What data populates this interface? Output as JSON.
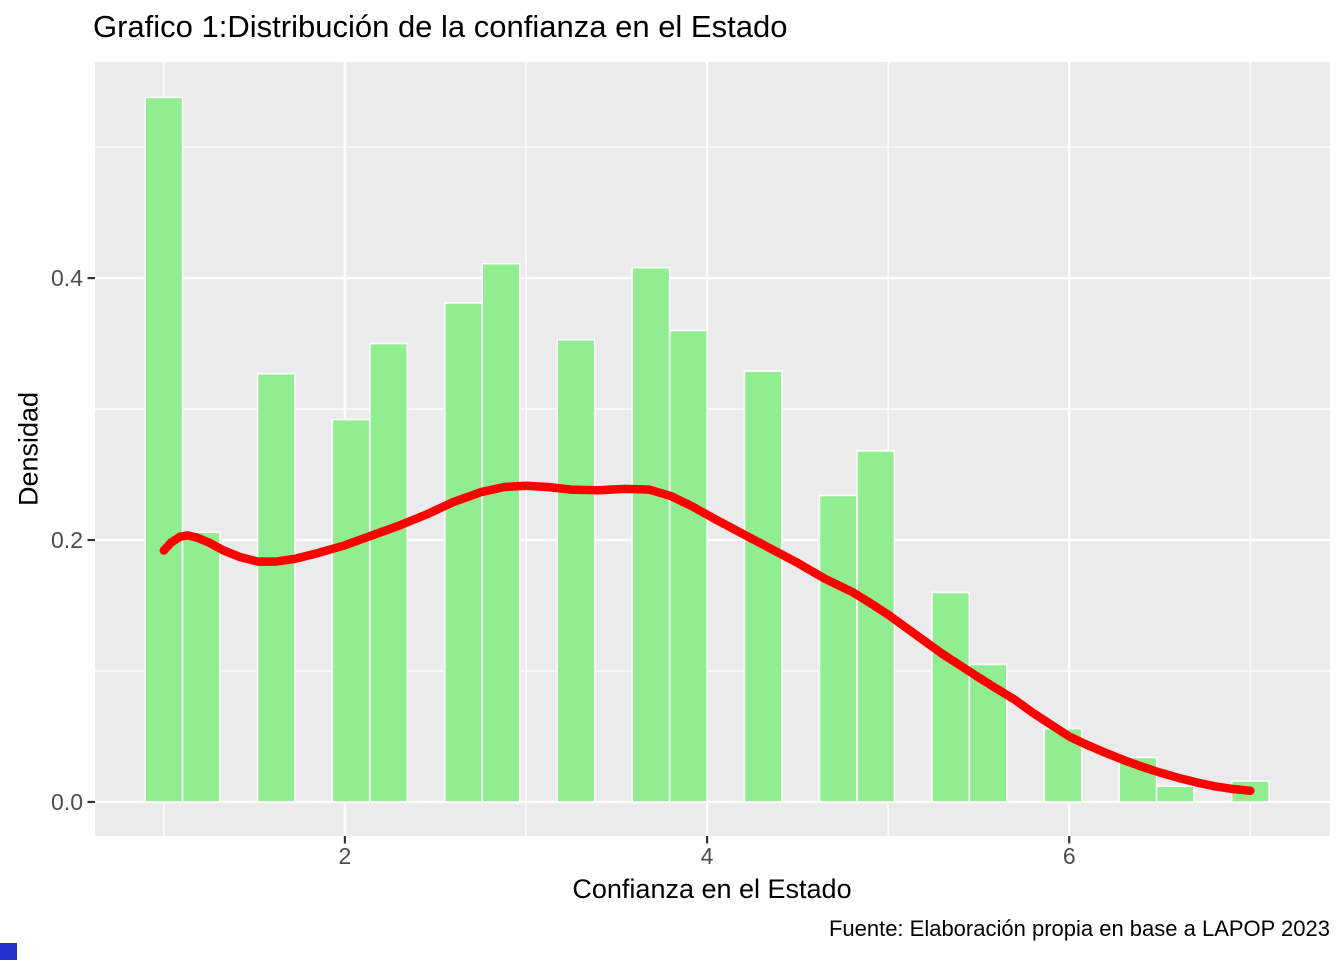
{
  "chart_data": {
    "type": "bar",
    "subtype": "histogram_with_density_curve",
    "title": "Grafico 1:Distribución de la confianza en el Estado",
    "xlabel": "Confianza en el Estado",
    "ylabel": "Densidad",
    "caption": "Fuente: Elaboración propia en base a LAPOP 2023",
    "xlim": [
      0.62,
      7.44
    ],
    "ylim": [
      -0.026,
      0.565
    ],
    "grid": "on",
    "x_major_ticks": {
      "values": [
        2,
        4,
        6
      ],
      "labels": [
        "2",
        "4",
        "6"
      ]
    },
    "y_major_ticks": {
      "values": [
        0.0,
        0.2,
        0.4
      ],
      "labels": [
        "0.0",
        "0.2",
        "0.4"
      ]
    },
    "x_minor_gridlines": [
      1,
      3,
      5,
      7
    ],
    "y_minor_gridlines": [
      0.1,
      0.3,
      0.5
    ],
    "binwidth": 0.2069,
    "bars": [
      {
        "x": 1.0,
        "density": 0.538
      },
      {
        "x": 1.207,
        "density": 0.206
      },
      {
        "x": 1.621,
        "density": 0.327
      },
      {
        "x": 2.034,
        "density": 0.292
      },
      {
        "x": 2.241,
        "density": 0.35
      },
      {
        "x": 2.655,
        "density": 0.381
      },
      {
        "x": 2.862,
        "density": 0.411
      },
      {
        "x": 3.276,
        "density": 0.353
      },
      {
        "x": 3.69,
        "density": 0.408
      },
      {
        "x": 3.897,
        "density": 0.36
      },
      {
        "x": 4.31,
        "density": 0.329
      },
      {
        "x": 4.724,
        "density": 0.234
      },
      {
        "x": 4.931,
        "density": 0.268
      },
      {
        "x": 5.345,
        "density": 0.16
      },
      {
        "x": 5.552,
        "density": 0.105
      },
      {
        "x": 5.966,
        "density": 0.056
      },
      {
        "x": 6.379,
        "density": 0.034
      },
      {
        "x": 6.586,
        "density": 0.012
      },
      {
        "x": 7.0,
        "density": 0.016
      }
    ],
    "density_curve": [
      [
        1.0,
        0.192
      ],
      [
        1.04,
        0.198
      ],
      [
        1.09,
        0.2025
      ],
      [
        1.13,
        0.2035
      ],
      [
        1.18,
        0.202
      ],
      [
        1.25,
        0.198
      ],
      [
        1.33,
        0.192
      ],
      [
        1.42,
        0.187
      ],
      [
        1.52,
        0.1835
      ],
      [
        1.62,
        0.1835
      ],
      [
        1.72,
        0.1855
      ],
      [
        1.85,
        0.19
      ],
      [
        2.0,
        0.196
      ],
      [
        2.15,
        0.2035
      ],
      [
        2.3,
        0.211
      ],
      [
        2.45,
        0.2195
      ],
      [
        2.6,
        0.229
      ],
      [
        2.75,
        0.2365
      ],
      [
        2.88,
        0.2405
      ],
      [
        3.0,
        0.2415
      ],
      [
        3.12,
        0.2405
      ],
      [
        3.25,
        0.2385
      ],
      [
        3.4,
        0.238
      ],
      [
        3.55,
        0.239
      ],
      [
        3.68,
        0.2385
      ],
      [
        3.8,
        0.2335
      ],
      [
        3.92,
        0.2255
      ],
      [
        4.05,
        0.2155
      ],
      [
        4.2,
        0.2045
      ],
      [
        4.35,
        0.1935
      ],
      [
        4.5,
        0.1825
      ],
      [
        4.65,
        0.1705
      ],
      [
        4.8,
        0.1605
      ],
      [
        4.9,
        0.152
      ],
      [
        5.0,
        0.143
      ],
      [
        5.1,
        0.133
      ],
      [
        5.2,
        0.123
      ],
      [
        5.3,
        0.113
      ],
      [
        5.4,
        0.104
      ],
      [
        5.5,
        0.095
      ],
      [
        5.6,
        0.0865
      ],
      [
        5.7,
        0.078
      ],
      [
        5.8,
        0.068
      ],
      [
        5.9,
        0.059
      ],
      [
        6.0,
        0.05
      ],
      [
        6.1,
        0.0435
      ],
      [
        6.2,
        0.0375
      ],
      [
        6.3,
        0.032
      ],
      [
        6.4,
        0.027
      ],
      [
        6.5,
        0.0225
      ],
      [
        6.6,
        0.0185
      ],
      [
        6.7,
        0.015
      ],
      [
        6.8,
        0.012
      ],
      [
        6.9,
        0.01
      ],
      [
        7.0,
        0.0085
      ]
    ],
    "colors": {
      "bar_fill": "#90EE90",
      "bar_border": "#FFFFFF",
      "curve": "#FF0000",
      "panel_background": "#EBEBEB",
      "gridline": "#FFFFFF",
      "tick_mark": "#333333",
      "tick_label": "#4D4D4D",
      "text": "#000000",
      "corner_square": "#2633D1"
    }
  }
}
